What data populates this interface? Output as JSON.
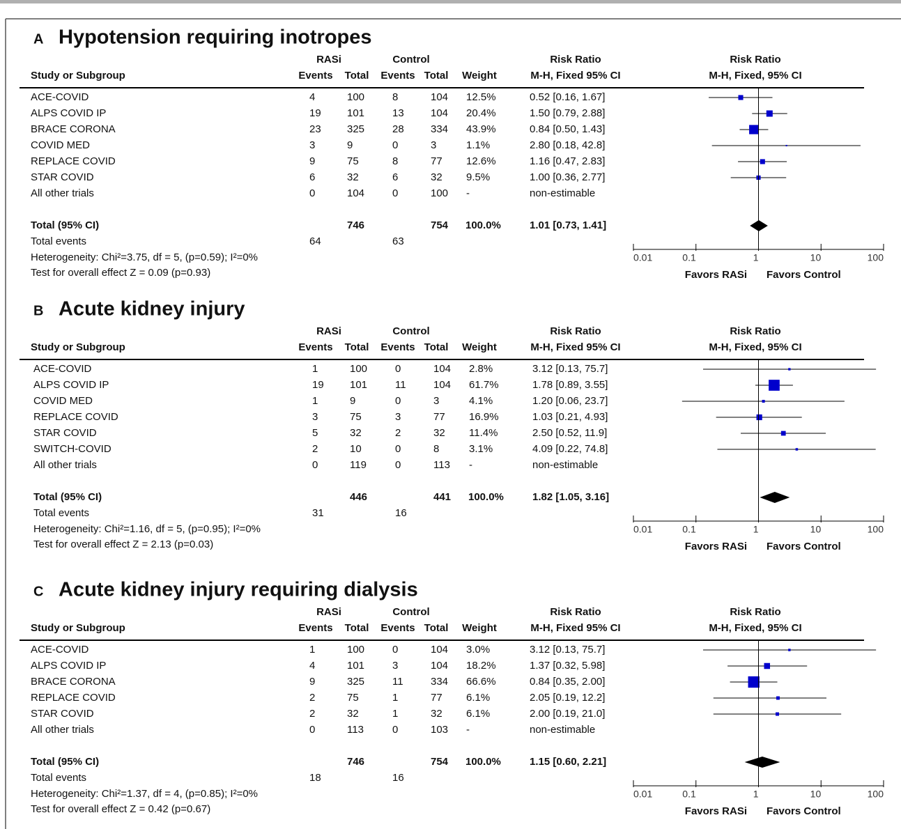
{
  "headers": {
    "study": "Study or Subgroup",
    "rasi": "RASi",
    "control": "Control",
    "events": "Events",
    "total": "Total",
    "weight": "Weight",
    "rr": "Risk Ratio",
    "rr_ci": "M-H, Fixed 95% CI",
    "plot_rr": "Risk Ratio",
    "plot_ci": "M-H, Fixed, 95% CI"
  },
  "chart_data": [
    {
      "type": "forest",
      "letter": "A",
      "title": "Hypotension requiring inotropes",
      "xscale": "log",
      "xlim": [
        0.01,
        100
      ],
      "xticks": [
        0.01,
        0.1,
        1,
        10,
        100
      ],
      "color": "#0000cc",
      "diamond_color": "#000000",
      "rows": [
        {
          "study": "ACE-COVID",
          "rasi_events": 4,
          "rasi_total": 100,
          "control_events": 8,
          "control_total": 104,
          "weight": 12.5,
          "weight_label": "12.5%",
          "rr": 0.52,
          "lower": 0.16,
          "upper": 1.67,
          "ci_label": "0.52 [0.16, 1.67]"
        },
        {
          "study": "ALPS  COVID IP",
          "rasi_events": 19,
          "rasi_total": 101,
          "control_events": 13,
          "control_total": 104,
          "weight": 20.4,
          "weight_label": "20.4%",
          "rr": 1.5,
          "lower": 0.79,
          "upper": 2.88,
          "ci_label": "1.50 [0.79, 2.88]"
        },
        {
          "study": "BRACE CORONA",
          "rasi_events": 23,
          "rasi_total": 325,
          "control_events": 28,
          "control_total": 334,
          "weight": 43.9,
          "weight_label": "43.9%",
          "rr": 0.84,
          "lower": 0.5,
          "upper": 1.43,
          "ci_label": "0.84 [0.50, 1.43]"
        },
        {
          "study": "COVID MED",
          "rasi_events": 3,
          "rasi_total": 9,
          "control_events": 0,
          "control_total": 3,
          "weight": 1.1,
          "weight_label": "1.1%",
          "rr": 2.8,
          "lower": 0.18,
          "upper": 42.8,
          "ci_label": "2.80 [0.18, 42.8]"
        },
        {
          "study": "REPLACE COVID",
          "rasi_events": 9,
          "rasi_total": 75,
          "control_events": 8,
          "control_total": 77,
          "weight": 12.6,
          "weight_label": "12.6%",
          "rr": 1.16,
          "lower": 0.47,
          "upper": 2.83,
          "ci_label": "1.16 [0.47, 2.83]"
        },
        {
          "study": "STAR COVID",
          "rasi_events": 6,
          "rasi_total": 32,
          "control_events": 6,
          "control_total": 32,
          "weight": 9.5,
          "weight_label": "9.5%",
          "rr": 1.0,
          "lower": 0.36,
          "upper": 2.77,
          "ci_label": "1.00 [0.36, 2.77]"
        },
        {
          "study": "All other trials",
          "rasi_events": 0,
          "rasi_total": 104,
          "control_events": 0,
          "control_total": 100,
          "weight": null,
          "weight_label": "-",
          "rr": null,
          "lower": null,
          "upper": null,
          "ci_label": "non-estimable"
        }
      ],
      "total": {
        "label": "Total (95% CI)",
        "rasi_total": 746,
        "control_total": 754,
        "weight_label": "100.0%",
        "rr": 1.01,
        "lower": 0.73,
        "upper": 1.41,
        "ci_label": "1.01 [0.73, 1.41]"
      },
      "total_events": {
        "label": "Total events",
        "rasi": 64,
        "control": 63
      },
      "heterogeneity": "Heterogeneity: Chi²=3.75, df = 5, (p=0.59); I²=0%",
      "overall_effect": "Test for overall effect Z = 0.09 (p=0.93)",
      "favors_left": "Favors RASi",
      "favors_right": "Favors Control"
    },
    {
      "type": "forest",
      "letter": "B",
      "title": "Acute kidney injury",
      "xscale": "log",
      "xlim": [
        0.01,
        100
      ],
      "xticks": [
        0.01,
        0.1,
        1,
        10,
        100
      ],
      "color": "#0000cc",
      "diamond_color": "#000000",
      "rows": [
        {
          "study": "ACE-COVID",
          "rasi_events": 1,
          "rasi_total": 100,
          "control_events": 0,
          "control_total": 104,
          "weight": 2.8,
          "weight_label": "2.8%",
          "rr": 3.12,
          "lower": 0.13,
          "upper": 75.7,
          "ci_label": "3.12 [0.13, 75.7]"
        },
        {
          "study": "ALPS  COVID IP",
          "rasi_events": 19,
          "rasi_total": 101,
          "control_events": 11,
          "control_total": 104,
          "weight": 61.7,
          "weight_label": "61.7%",
          "rr": 1.78,
          "lower": 0.89,
          "upper": 3.55,
          "ci_label": "1.78 [0.89, 3.55]"
        },
        {
          "study": "COVID MED",
          "rasi_events": 1,
          "rasi_total": 9,
          "control_events": 0,
          "control_total": 3,
          "weight": 4.1,
          "weight_label": "4.1%",
          "rr": 1.2,
          "lower": 0.06,
          "upper": 23.7,
          "ci_label": "1.20 [0.06, 23.7]"
        },
        {
          "study": "REPLACE COVID",
          "rasi_events": 3,
          "rasi_total": 75,
          "control_events": 3,
          "control_total": 77,
          "weight": 16.9,
          "weight_label": "16.9%",
          "rr": 1.03,
          "lower": 0.21,
          "upper": 4.93,
          "ci_label": "1.03 [0.21, 4.93]"
        },
        {
          "study": "STAR COVID",
          "rasi_events": 5,
          "rasi_total": 32,
          "control_events": 2,
          "control_total": 32,
          "weight": 11.4,
          "weight_label": "11.4%",
          "rr": 2.5,
          "lower": 0.52,
          "upper": 11.9,
          "ci_label": "2.50 [0.52, 11.9]"
        },
        {
          "study": "SWITCH-COVID",
          "rasi_events": 2,
          "rasi_total": 10,
          "control_events": 0,
          "control_total": 8,
          "weight": 3.1,
          "weight_label": "3.1%",
          "rr": 4.09,
          "lower": 0.22,
          "upper": 74.8,
          "ci_label": "4.09 [0.22, 74.8]"
        },
        {
          "study": "All other trials",
          "rasi_events": 0,
          "rasi_total": 119,
          "control_events": 0,
          "control_total": 113,
          "weight": null,
          "weight_label": "-",
          "rr": null,
          "lower": null,
          "upper": null,
          "ci_label": "non-estimable"
        }
      ],
      "total": {
        "label": "Total (95% CI)",
        "rasi_total": 446,
        "control_total": 441,
        "weight_label": "100.0%",
        "rr": 1.82,
        "lower": 1.05,
        "upper": 3.16,
        "ci_label": "1.82 [1.05, 3.16]"
      },
      "total_events": {
        "label": "Total events",
        "rasi": 31,
        "control": 16
      },
      "heterogeneity": "Heterogeneity: Chi²=1.16, df = 5, (p=0.95); I²=0%",
      "overall_effect": "Test for overall effect Z = 2.13 (p=0.03)",
      "favors_left": "Favors RASi",
      "favors_right": "Favors Control"
    },
    {
      "type": "forest",
      "letter": "C",
      "title": "Acute kidney injury requiring dialysis",
      "xscale": "log",
      "xlim": [
        0.01,
        100
      ],
      "xticks": [
        0.01,
        0.1,
        1,
        10,
        100
      ],
      "color": "#0000cc",
      "diamond_color": "#000000",
      "rows": [
        {
          "study": "ACE-COVID",
          "rasi_events": 1,
          "rasi_total": 100,
          "control_events": 0,
          "control_total": 104,
          "weight": 3.0,
          "weight_label": "3.0%",
          "rr": 3.12,
          "lower": 0.13,
          "upper": 75.7,
          "ci_label": "3.12 [0.13, 75.7]"
        },
        {
          "study": "ALPS  COVID IP",
          "rasi_events": 4,
          "rasi_total": 101,
          "control_events": 3,
          "control_total": 104,
          "weight": 18.2,
          "weight_label": "18.2%",
          "rr": 1.37,
          "lower": 0.32,
          "upper": 5.98,
          "ci_label": "1.37 [0.32, 5.98]"
        },
        {
          "study": "BRACE CORONA",
          "rasi_events": 9,
          "rasi_total": 325,
          "control_events": 11,
          "control_total": 334,
          "weight": 66.6,
          "weight_label": "66.6%",
          "rr": 0.84,
          "lower": 0.35,
          "upper": 2.0,
          "ci_label": "0.84 [0.35, 2.00]"
        },
        {
          "study": "REPLACE COVID",
          "rasi_events": 2,
          "rasi_total": 75,
          "control_events": 1,
          "control_total": 77,
          "weight": 6.1,
          "weight_label": "6.1%",
          "rr": 2.05,
          "lower": 0.19,
          "upper": 12.2,
          "ci_label": "2.05 [0.19, 12.2]"
        },
        {
          "study": "STAR COVID",
          "rasi_events": 2,
          "rasi_total": 32,
          "control_events": 1,
          "control_total": 32,
          "weight": 6.1,
          "weight_label": "6.1%",
          "rr": 2.0,
          "lower": 0.19,
          "upper": 21.0,
          "ci_label": "2.00 [0.19, 21.0]"
        },
        {
          "study": "All other trials",
          "rasi_events": 0,
          "rasi_total": 113,
          "control_events": 0,
          "control_total": 103,
          "weight": null,
          "weight_label": "-",
          "rr": null,
          "lower": null,
          "upper": null,
          "ci_label": "non-estimable"
        }
      ],
      "total": {
        "label": "Total (95% CI)",
        "rasi_total": 746,
        "control_total": 754,
        "weight_label": "100.0%",
        "rr": 1.15,
        "lower": 0.6,
        "upper": 2.21,
        "ci_label": "1.15 [0.60, 2.21]"
      },
      "total_events": {
        "label": "Total events",
        "rasi": 18,
        "control": 16
      },
      "heterogeneity": "Heterogeneity: Chi²=1.37, df = 4, (p=0.85); I²=0%",
      "overall_effect": "Test for overall effect Z = 0.42 (p=0.67)",
      "favors_left": "Favors RASi",
      "favors_right": "Favors Control"
    }
  ]
}
